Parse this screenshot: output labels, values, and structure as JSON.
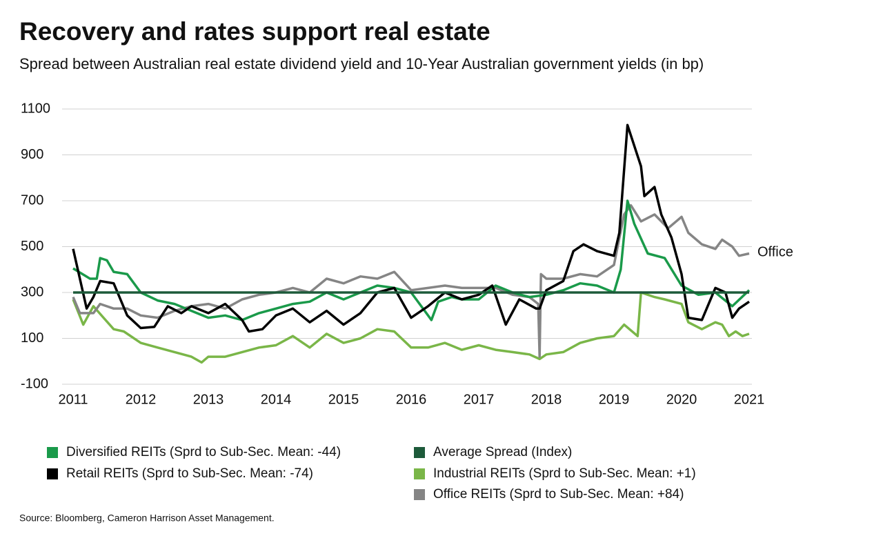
{
  "chart_data": {
    "type": "line",
    "title": "Recovery and rates support real estate",
    "subtitle": "Spread between Australian real estate dividend yield and 10-Year Australian government yields (in bp)",
    "source": "Source:  Bloomberg, Cameron Harrison Asset Management.",
    "annotation": "Office",
    "xlim": [
      2011,
      2021
    ],
    "xticks": [
      2011,
      2012,
      2013,
      2014,
      2015,
      2016,
      2017,
      2018,
      2019,
      2020,
      2021
    ],
    "ylim": [
      -100,
      1100
    ],
    "yticks": [
      -100,
      100,
      300,
      500,
      700,
      900,
      1100
    ],
    "grid": true,
    "series": [
      {
        "name": "Industrial REITs (Sprd to Sub-Sec. Mean: +1)",
        "color": "#7ab648",
        "x": [
          2011,
          2011.15,
          2011.3,
          2011.45,
          2011.6,
          2011.75,
          2012,
          2012.25,
          2012.5,
          2012.75,
          2012.9,
          2013,
          2013.25,
          2013.5,
          2013.75,
          2014,
          2014.25,
          2014.5,
          2014.75,
          2015,
          2015.25,
          2015.5,
          2015.75,
          2016,
          2016.25,
          2016.5,
          2016.75,
          2017,
          2017.25,
          2017.5,
          2017.75,
          2017.9,
          2018,
          2018.25,
          2018.5,
          2018.75,
          2019,
          2019.15,
          2019.35,
          2019.4,
          2019.6,
          2019.75,
          2020,
          2020.1,
          2020.3,
          2020.5,
          2020.6,
          2020.7,
          2020.8,
          2020.9,
          2021
        ],
        "values": [
          270,
          160,
          240,
          190,
          140,
          130,
          80,
          60,
          40,
          20,
          -5,
          20,
          20,
          40,
          60,
          70,
          110,
          60,
          120,
          80,
          100,
          140,
          130,
          60,
          60,
          80,
          50,
          70,
          50,
          40,
          30,
          10,
          30,
          40,
          80,
          100,
          110,
          160,
          110,
          300,
          280,
          270,
          250,
          170,
          140,
          170,
          160,
          110,
          130,
          110,
          120
        ]
      },
      {
        "name": "Office REITs (Sprd to Sub-Sec. Mean: +84)",
        "color": "#858585",
        "x": [
          2011,
          2011.1,
          2011.3,
          2011.4,
          2011.6,
          2011.8,
          2012,
          2012.25,
          2012.5,
          2012.75,
          2013,
          2013.25,
          2013.5,
          2013.75,
          2014,
          2014.25,
          2014.5,
          2014.75,
          2015,
          2015.25,
          2015.5,
          2015.75,
          2016,
          2016.25,
          2016.5,
          2016.75,
          2017,
          2017.25,
          2017.5,
          2017.75,
          2017.88,
          2017.9,
          2017.92,
          2018,
          2018.25,
          2018.5,
          2018.75,
          2019,
          2019.15,
          2019.25,
          2019.4,
          2019.6,
          2019.8,
          2020,
          2020.1,
          2020.3,
          2020.5,
          2020.6,
          2020.75,
          2020.85,
          2021
        ],
        "values": [
          280,
          210,
          210,
          250,
          230,
          230,
          200,
          190,
          220,
          240,
          250,
          230,
          270,
          290,
          300,
          320,
          300,
          360,
          340,
          370,
          360,
          390,
          310,
          320,
          330,
          320,
          320,
          320,
          290,
          280,
          250,
          20,
          380,
          360,
          360,
          380,
          370,
          420,
          640,
          680,
          610,
          640,
          580,
          630,
          560,
          510,
          490,
          530,
          500,
          460,
          470
        ]
      },
      {
        "name": "Diversified REITs (Sprd to Sub-Sec. Mean: -44)",
        "color": "#1a9a4a",
        "x": [
          2011,
          2011.25,
          2011.35,
          2011.4,
          2011.5,
          2011.6,
          2011.8,
          2012,
          2012.25,
          2012.5,
          2012.75,
          2013,
          2013.25,
          2013.5,
          2013.75,
          2014,
          2014.25,
          2014.5,
          2014.75,
          2015,
          2015.25,
          2015.5,
          2015.75,
          2016,
          2016.2,
          2016.3,
          2016.4,
          2016.6,
          2016.75,
          2017,
          2017.25,
          2017.5,
          2017.75,
          2018,
          2018.25,
          2018.5,
          2018.75,
          2019,
          2019.1,
          2019.2,
          2019.3,
          2019.5,
          2019.75,
          2020,
          2020.25,
          2020.5,
          2020.75,
          2021
        ],
        "values": [
          405,
          360,
          360,
          450,
          440,
          390,
          380,
          300,
          265,
          250,
          220,
          190,
          200,
          180,
          210,
          230,
          250,
          260,
          300,
          270,
          300,
          330,
          320,
          300,
          220,
          180,
          260,
          280,
          270,
          270,
          330,
          300,
          280,
          290,
          310,
          340,
          330,
          300,
          400,
          700,
          600,
          470,
          450,
          330,
          290,
          300,
          240,
          310
        ]
      },
      {
        "name": "Retail REITs (Sprd to Sub-Sec. Mean: -74)",
        "color": "#000000",
        "x": [
          2011,
          2011.2,
          2011.3,
          2011.4,
          2011.6,
          2011.8,
          2012,
          2012.2,
          2012.4,
          2012.6,
          2012.75,
          2013,
          2013.25,
          2013.5,
          2013.6,
          2013.8,
          2014,
          2014.25,
          2014.5,
          2014.75,
          2015,
          2015.25,
          2015.5,
          2015.75,
          2016,
          2016.25,
          2016.5,
          2016.75,
          2017,
          2017.2,
          2017.4,
          2017.6,
          2017.85,
          2017.9,
          2018,
          2018.25,
          2018.4,
          2018.55,
          2018.75,
          2019,
          2019.08,
          2019.2,
          2019.4,
          2019.45,
          2019.6,
          2019.7,
          2019.85,
          2020,
          2020.1,
          2020.3,
          2020.5,
          2020.65,
          2020.75,
          2020.85,
          2021
        ],
        "values": [
          490,
          230,
          280,
          350,
          340,
          200,
          145,
          150,
          240,
          210,
          240,
          210,
          250,
          180,
          130,
          140,
          200,
          230,
          170,
          220,
          160,
          210,
          300,
          320,
          190,
          240,
          300,
          270,
          290,
          330,
          160,
          270,
          230,
          230,
          310,
          350,
          480,
          510,
          480,
          460,
          560,
          1030,
          850,
          720,
          760,
          640,
          540,
          380,
          190,
          180,
          320,
          300,
          190,
          230,
          260
        ]
      },
      {
        "name": "Average Spread (Index)",
        "color": "#1d5a3a",
        "x": [
          2011,
          2021
        ],
        "values": [
          300,
          300
        ]
      }
    ]
  }
}
